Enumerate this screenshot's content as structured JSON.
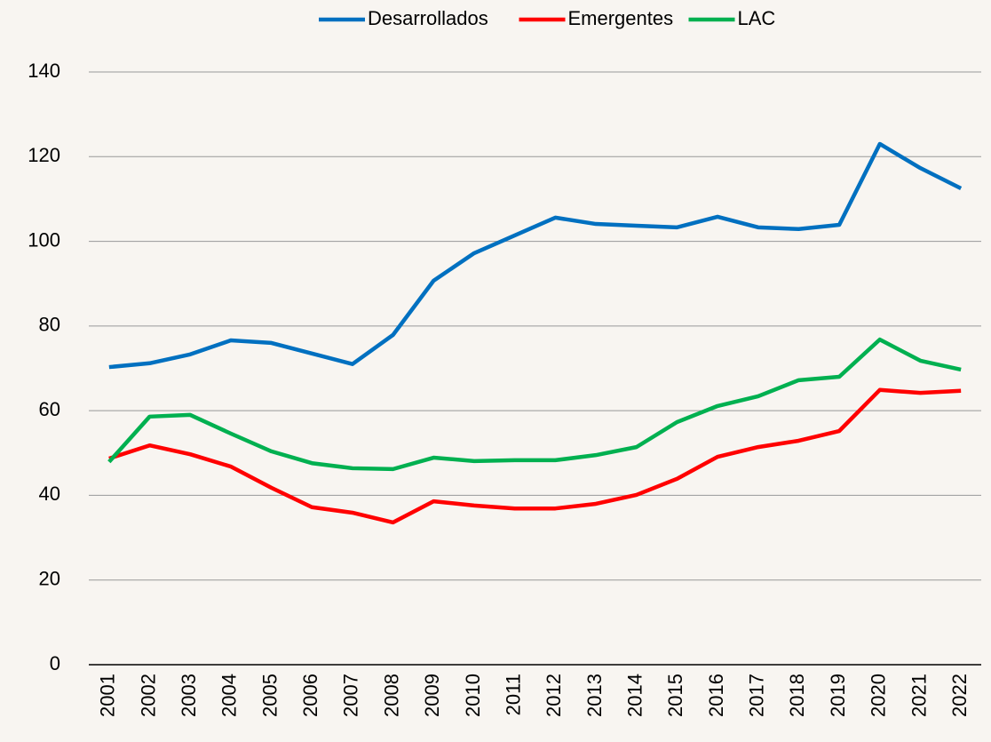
{
  "chart_data": {
    "type": "line",
    "categories": [
      "2001",
      "2002",
      "2003",
      "2004",
      "2005",
      "2006",
      "2007",
      "2008",
      "2009",
      "2010",
      "2011",
      "2012",
      "2013",
      "2014",
      "2015",
      "2016",
      "2017",
      "2018",
      "2019",
      "2020",
      "2021",
      "2022"
    ],
    "series": [
      {
        "name": "Desarrollados",
        "color": "#0070c0",
        "values": [
          70.3,
          71.2,
          73.3,
          76.6,
          76.0,
          73.5,
          71.0,
          77.9,
          90.7,
          97.2,
          101.4,
          105.6,
          104.1,
          103.7,
          103.3,
          105.8,
          103.3,
          102.9,
          103.9,
          123.0,
          117.3,
          112.5
        ]
      },
      {
        "name": "Emergentes",
        "color": "#ff0000",
        "values": [
          48.7,
          51.8,
          49.7,
          46.8,
          41.8,
          37.2,
          35.9,
          33.6,
          38.6,
          37.6,
          36.9,
          36.9,
          38.0,
          40.1,
          43.9,
          49.1,
          51.4,
          52.9,
          55.2,
          64.9,
          64.2,
          64.7
        ]
      },
      {
        "name": "LAC",
        "color": "#00b050",
        "values": [
          47.9,
          58.6,
          59.0,
          54.6,
          50.4,
          47.6,
          46.4,
          46.2,
          48.9,
          48.1,
          48.3,
          48.3,
          49.5,
          51.4,
          57.3,
          61.1,
          63.4,
          67.2,
          68.0,
          76.8,
          71.8,
          69.7
        ]
      }
    ],
    "ylim": [
      0,
      140
    ],
    "yticks": [
      0,
      20,
      40,
      60,
      80,
      100,
      120,
      140
    ],
    "grid": true,
    "legend": "top"
  }
}
